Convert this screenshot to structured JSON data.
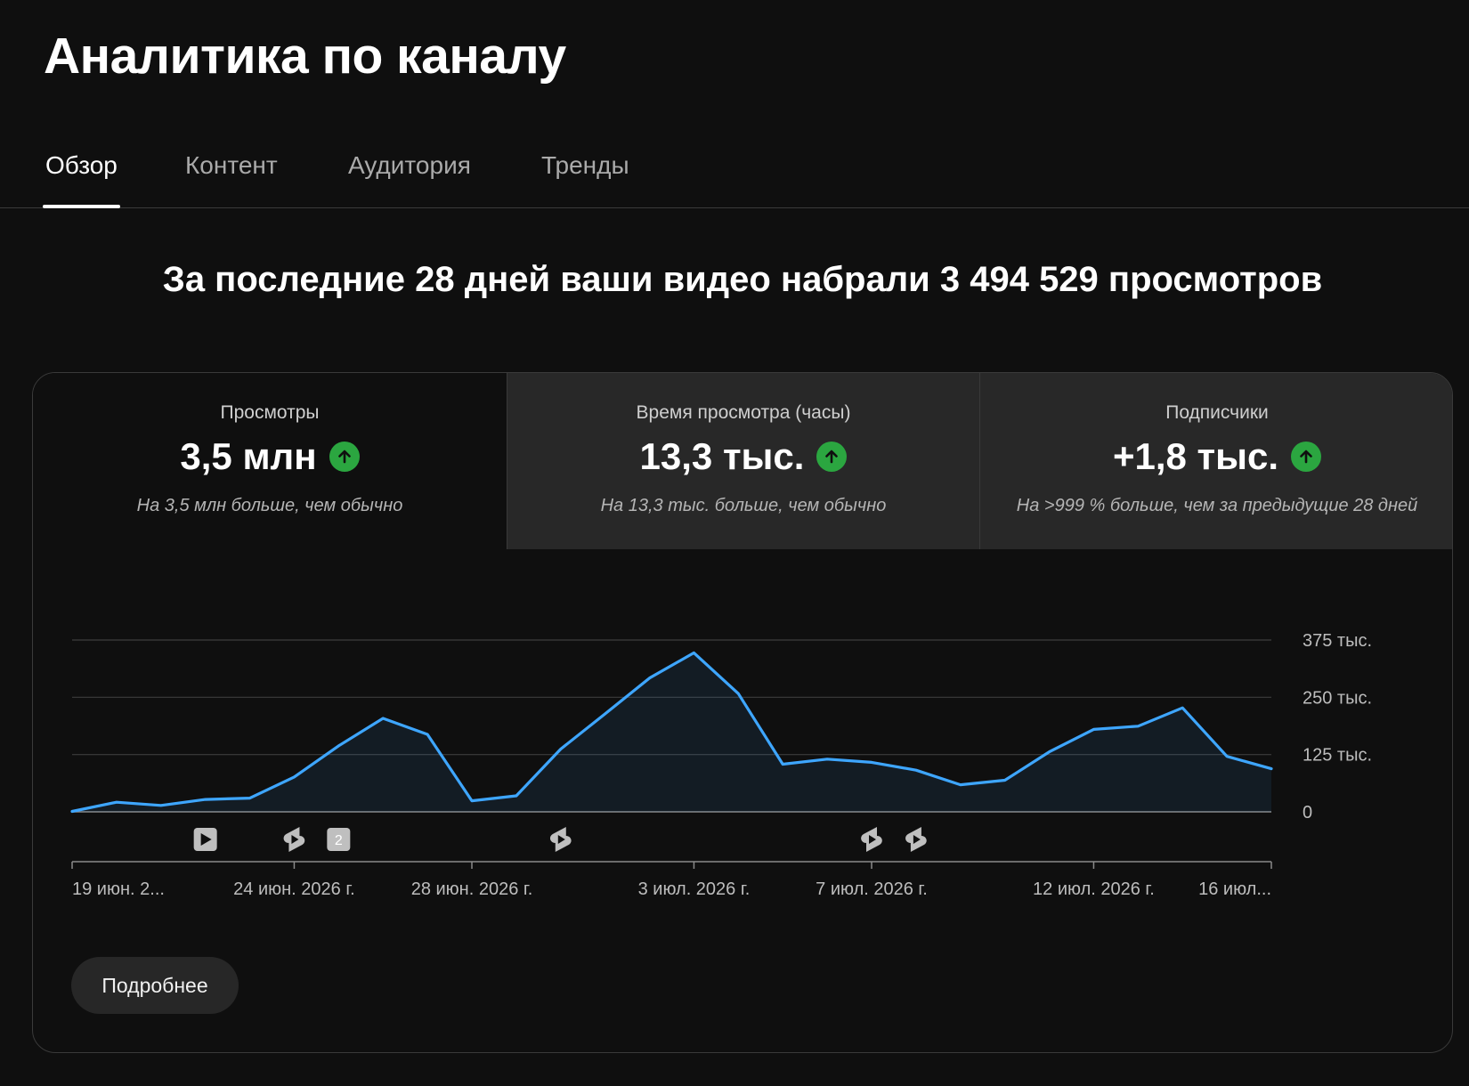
{
  "page": {
    "title": "Аналитика по каналу"
  },
  "tabs": [
    {
      "label": "Обзор",
      "active": true
    },
    {
      "label": "Контент",
      "active": false
    },
    {
      "label": "Аудитория",
      "active": false
    },
    {
      "label": "Тренды",
      "active": false
    }
  ],
  "summary": {
    "headline": "За последние 28 дней ваши видео набрали 3 494 529 просмотров"
  },
  "metrics": [
    {
      "label": "Просмотры",
      "value": "3,5 млн",
      "note": "На 3,5 млн больше, чем обычно",
      "trend_icon": "arrow-up-icon"
    },
    {
      "label": "Время просмотра (часы)",
      "value": "13,3 тыс.",
      "note": "На 13,3 тыс. больше, чем обычно",
      "trend_icon": "arrow-up-icon"
    },
    {
      "label": "Подписчики",
      "value": "+1,8 тыс.",
      "note": "На >999 % больше, чем за предыдущие 28 дней",
      "trend_icon": "arrow-up-icon"
    }
  ],
  "colors": {
    "accent_line": "#3ea6ff",
    "trend_up": "#2ba640",
    "card_tab_inactive": "#282828"
  },
  "chart_data": {
    "type": "area",
    "x": [
      "19 июн. 2026 г.",
      "20 июн. 2026 г.",
      "21 июн. 2026 г.",
      "22 июн. 2026 г.",
      "23 июн. 2026 г.",
      "24 июн. 2026 г.",
      "25 июн. 2026 г.",
      "26 июн. 2026 г.",
      "27 июн. 2026 г.",
      "28 июн. 2026 г.",
      "29 июн. 2026 г.",
      "30 июн. 2026 г.",
      "1 июл. 2026 г.",
      "2 июл. 2026 г.",
      "3 июл. 2026 г.",
      "4 июл. 2026 г.",
      "5 июл. 2026 г.",
      "6 июл. 2026 г.",
      "7 июл. 2026 г.",
      "8 июл. 2026 г.",
      "9 июл. 2026 г.",
      "10 июл. 2026 г.",
      "11 июл. 2026 г.",
      "12 июл. 2026 г.",
      "13 июл. 2026 г.",
      "14 июл. 2026 г.",
      "15 июл. 2026 г.",
      "16 июл. 2026 г."
    ],
    "series": [
      {
        "values": [
          1000,
          21000,
          14000,
          27000,
          30000,
          76000,
          144000,
          204000,
          169000,
          24000,
          35000,
          137000,
          214000,
          292000,
          347000,
          258000,
          104000,
          115000,
          108000,
          91000,
          59000,
          69000,
          131000,
          180000,
          187000,
          227000,
          121000,
          94000
        ]
      }
    ],
    "ylim": [
      0,
      375000
    ],
    "yticks": [
      {
        "value": 0,
        "label": "0"
      },
      {
        "value": 125000,
        "label": "125 тыс."
      },
      {
        "value": 250000,
        "label": "250 тыс."
      },
      {
        "value": 375000,
        "label": "375 тыс."
      }
    ],
    "xticks": [
      {
        "index": 0,
        "label": "19 июн. 2..."
      },
      {
        "index": 5,
        "label": "24 июн. 2026 г."
      },
      {
        "index": 9,
        "label": "28 июн. 2026 г."
      },
      {
        "index": 14,
        "label": "3 июл. 2026 г."
      },
      {
        "index": 18,
        "label": "7 июл. 2026 г."
      },
      {
        "index": 23,
        "label": "12 июл. 2026 г."
      },
      {
        "index": 27,
        "label": "16 июл..."
      }
    ],
    "markers": [
      {
        "index": 3,
        "type": "video-icon"
      },
      {
        "index": 5,
        "type": "shorts-icon"
      },
      {
        "index": 6,
        "type": "count-badge",
        "label": "2"
      },
      {
        "index": 11,
        "type": "shorts-icon"
      },
      {
        "index": 18,
        "type": "shorts-icon"
      },
      {
        "index": 19,
        "type": "shorts-icon"
      }
    ],
    "grid": true,
    "legend": "none"
  },
  "actions": {
    "more_label": "Подробнее"
  }
}
